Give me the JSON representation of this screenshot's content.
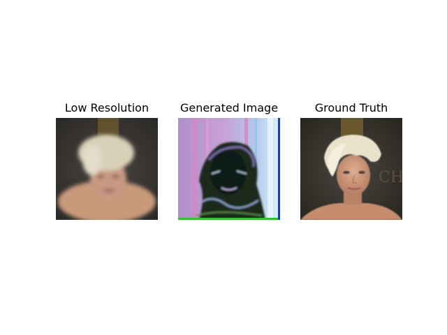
{
  "figure": {
    "panels": [
      {
        "title": "Low Resolution",
        "image": "blurred-face-photo"
      },
      {
        "title": "Generated Image",
        "image": "noisy-generated-face"
      },
      {
        "title": "Ground Truth",
        "image": "face-photo"
      }
    ]
  }
}
